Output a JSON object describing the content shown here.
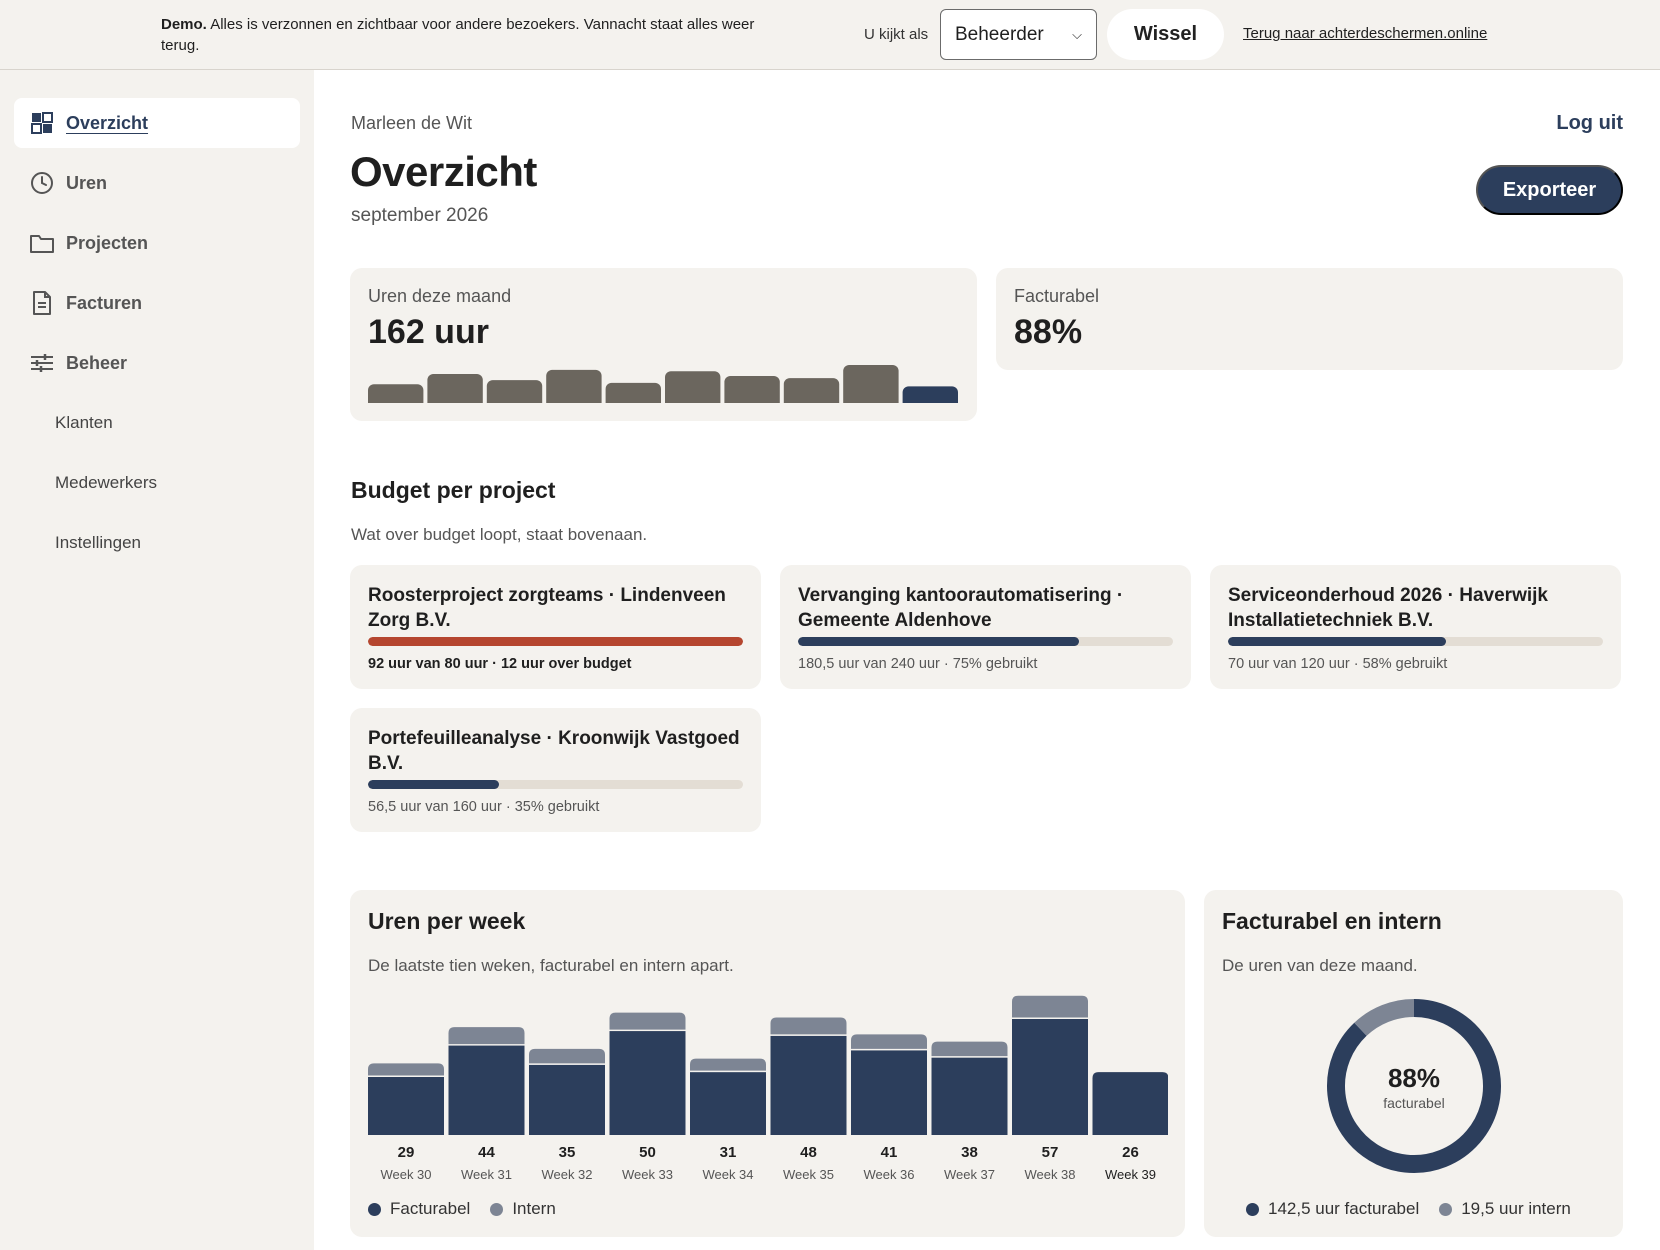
{
  "demo": {
    "label": "Demo.",
    "text": "Alles is verzonnen en zichtbaar voor andere bezoekers. Vannacht staat alles weer terug.",
    "view_as_label": "U kijkt als",
    "role_selected": "Beheerder",
    "switch_label": "Wissel",
    "back_link": "Terug naar achterdeschermen.online"
  },
  "sidebar": {
    "items": [
      {
        "label": "Overzicht",
        "icon": "grid-icon",
        "active": true
      },
      {
        "label": "Uren",
        "icon": "clock-icon"
      },
      {
        "label": "Projecten",
        "icon": "folder-icon"
      },
      {
        "label": "Facturen",
        "icon": "document-icon"
      },
      {
        "label": "Beheer",
        "icon": "sliders-icon"
      }
    ],
    "subitems": [
      "Klanten",
      "Medewerkers",
      "Instellingen"
    ]
  },
  "header": {
    "user": "Marleen de Wit",
    "logout": "Log uit",
    "title": "Overzicht",
    "period": "september 2026",
    "export": "Exporteer"
  },
  "stats": {
    "hours": {
      "label": "Uren deze maand",
      "value": "162 uur",
      "spark": [
        29,
        44,
        35,
        50,
        31,
        48,
        41,
        38,
        57,
        26
      ]
    },
    "billable": {
      "label": "Facturabel",
      "value": "88%"
    }
  },
  "budget": {
    "title": "Budget per project",
    "subtitle": "Wat over budget loopt, staat bovenaan.",
    "projects": [
      {
        "name": "Roosterproject zorgteams · Lindenveen Zorg B.V.",
        "status": "92 uur van 80 uur · 12 uur over budget",
        "fraction": 1.0,
        "over": true
      },
      {
        "name": "Vervanging kantoorautomatisering · Gemeente Aldenhove",
        "status": "180,5 uur van 240 uur · 75% gebruikt",
        "fraction": 0.75,
        "over": false
      },
      {
        "name": "Serviceonderhoud 2026 · Haverwijk Installatietechniek B.V.",
        "status": "70 uur van 120 uur · 58% gebruikt",
        "fraction": 0.58,
        "over": false
      },
      {
        "name": "Portefeuilleanalyse · Kroonwijk Vastgoed B.V.",
        "status": "56,5 uur van 160 uur · 35% gebruikt",
        "fraction": 0.35,
        "over": false
      }
    ]
  },
  "weekly": {
    "title": "Uren per week",
    "subtitle": "De laatste tien weken, facturabel en intern apart.",
    "legend_billable": "Facturabel",
    "legend_internal": "Intern",
    "colors": {
      "billable": "#2c3e5c",
      "internal": "#7d8594"
    }
  },
  "split": {
    "title": "Facturabel en intern",
    "subtitle": "De uren van deze maand.",
    "center_value": "88%",
    "center_label": "facturabel",
    "legend_billable": "142,5 uur facturabel",
    "legend_internal": "19,5 uur intern"
  },
  "chart_data": [
    {
      "type": "bar",
      "stacked": true,
      "categories": [
        "Week 30",
        "Week 31",
        "Week 32",
        "Week 33",
        "Week 34",
        "Week 35",
        "Week 36",
        "Week 37",
        "Week 38",
        "Week 39"
      ],
      "totals": [
        "29",
        "44",
        "35",
        "50",
        "31",
        "48",
        "41",
        "38",
        "57",
        "26"
      ],
      "series": [
        {
          "name": "Facturabel",
          "values": [
            24,
            37,
            29,
            43,
            26,
            41,
            35,
            32,
            48,
            26
          ]
        },
        {
          "name": "Intern",
          "values": [
            5,
            7,
            6,
            7,
            5,
            7,
            6,
            6,
            9,
            0
          ]
        }
      ],
      "ylim": [
        0,
        60
      ]
    },
    {
      "type": "pie",
      "donut": true,
      "labels": [
        "Facturabel",
        "Intern"
      ],
      "values": [
        142.5,
        19.5
      ]
    }
  ]
}
